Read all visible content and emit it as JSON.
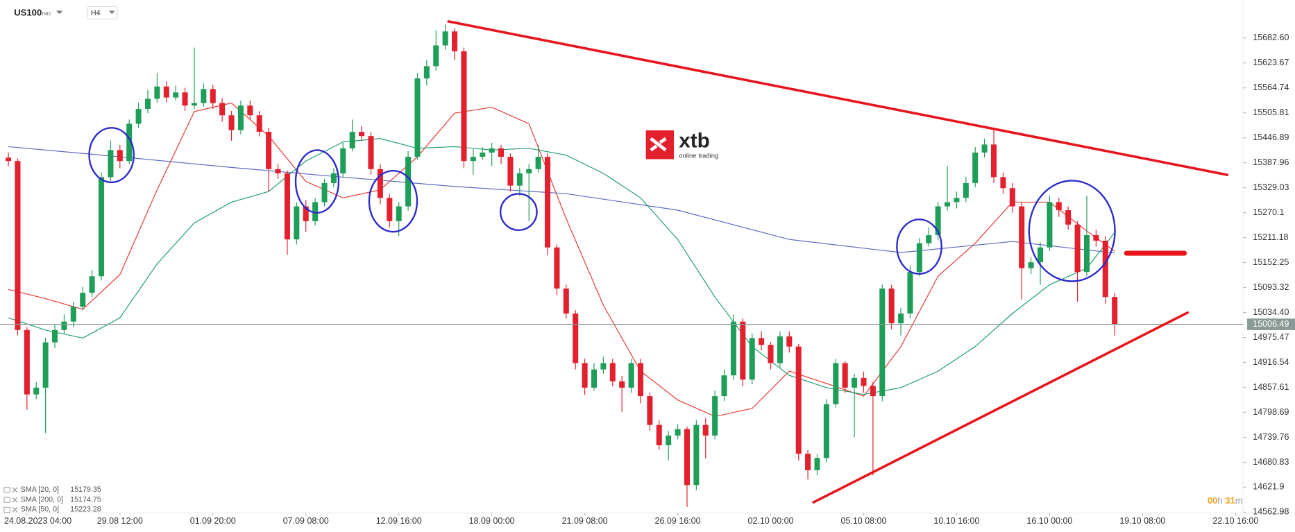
{
  "chart_data": {
    "type": "candlestick",
    "symbol": "US100",
    "market": "IND",
    "interval": "H4",
    "logo": {
      "name": "xtb",
      "tagline": "online trading"
    },
    "up_color": "#1f9e5a",
    "down_color": "#e3202e",
    "x": [
      -2,
      -1,
      0,
      1,
      2,
      3,
      4,
      5,
      6,
      7,
      8,
      9,
      10,
      11,
      12,
      13,
      14,
      15,
      16,
      17,
      18,
      19,
      20,
      21,
      22,
      23,
      24,
      25,
      26,
      27,
      28,
      29,
      30,
      31,
      32,
      33,
      34,
      35,
      36,
      37,
      38,
      39,
      40,
      41,
      42,
      43,
      44,
      45,
      46,
      47,
      48,
      49,
      50,
      51,
      52,
      53,
      54,
      55,
      56,
      57,
      58,
      59,
      60,
      61,
      62,
      63,
      64,
      65,
      66,
      67,
      68,
      69,
      70,
      71,
      72,
      73,
      74,
      75,
      76,
      77,
      78,
      79,
      80,
      81,
      82,
      83,
      84,
      85,
      86,
      87,
      88,
      89,
      90,
      91,
      92,
      93,
      94,
      95,
      96,
      97,
      98,
      99,
      100,
      101,
      102,
      103,
      104,
      105,
      106,
      107,
      108,
      109,
      110,
      111,
      112,
      113,
      114,
      115,
      116,
      117
    ],
    "open": [
      15400,
      15392,
      14993,
      14841,
      14857,
      14964,
      14993,
      15013,
      15048,
      15081,
      15120,
      15354,
      15418,
      15392,
      15480,
      15515,
      15539,
      15568,
      15542,
      15554,
      15523,
      15529,
      15562,
      15529,
      15500,
      15465,
      15523,
      15500,
      15461,
      15373,
      15363,
      15207,
      15285,
      15250,
      15295,
      15340,
      15363,
      15422,
      15461,
      15451,
      15373,
      15305,
      15250,
      15285,
      15402,
      15587,
      15616,
      15665,
      15698,
      15651,
      15392,
      15402,
      15412,
      15422,
      15402,
      15334,
      15363,
      15373,
      15402,
      15188,
      15091,
      15032,
      14915,
      14857,
      14900,
      14915,
      14872,
      14857,
      14915,
      14837,
      14769,
      14721,
      14744,
      14759,
      14627,
      14769,
      14744,
      14837,
      14886,
      15013,
      14876,
      14974,
      14958,
      14915,
      14978,
      14954,
      14701,
      14662,
      14691,
      14818,
      14915,
      14857,
      14880,
      14861,
      14837,
      15091,
      15009,
      15032,
      15130,
      15198,
      15217,
      15285,
      15295,
      15305,
      15340,
      15412,
      15431,
      15354,
      15328,
      15285,
      15139,
      15153,
      15188,
      15295,
      15276,
      15242,
      15130,
      15217,
      15204,
      15071
    ],
    "high": [
      15412,
      15398,
      15000,
      14870,
      14975,
      15005,
      15030,
      15060,
      15095,
      15135,
      15365,
      15440,
      15430,
      15490,
      15530,
      15560,
      15600,
      15580,
      15570,
      15565,
      15660,
      15575,
      15572,
      15540,
      15510,
      15535,
      15535,
      15510,
      15470,
      15385,
      15370,
      15295,
      15300,
      15305,
      15350,
      15375,
      15435,
      15490,
      15475,
      15460,
      15385,
      15315,
      15295,
      15415,
      15600,
      15630,
      15700,
      15715,
      15705,
      15660,
      15420,
      15425,
      15435,
      15430,
      15410,
      15375,
      15385,
      15430,
      15410,
      15195,
      15100,
      15040,
      14925,
      14915,
      14930,
      14925,
      14885,
      14925,
      14925,
      14845,
      14780,
      14755,
      14770,
      14765,
      14780,
      14785,
      14850,
      14900,
      15030,
      15020,
      14985,
      14990,
      14965,
      14990,
      14990,
      14960,
      14710,
      14700,
      14830,
      14925,
      14920,
      14890,
      14895,
      14870,
      15100,
      15100,
      15045,
      15145,
      15210,
      15235,
      15295,
      15380,
      15320,
      15355,
      15425,
      15445,
      15470,
      15365,
      15340,
      15295,
      15165,
      15200,
      15310,
      15305,
      15285,
      15250,
      15310,
      15230,
      15215,
      15080
    ],
    "low": [
      15380,
      14980,
      14805,
      14830,
      14750,
      14950,
      14985,
      15000,
      15040,
      15070,
      15110,
      15345,
      15375,
      15385,
      15470,
      15505,
      15530,
      15530,
      15535,
      15510,
      15515,
      15520,
      15515,
      15485,
      15440,
      15455,
      15490,
      15450,
      15320,
      15350,
      15170,
      15195,
      15225,
      15240,
      15285,
      15330,
      15355,
      15415,
      15440,
      15360,
      15290,
      15235,
      15215,
      15275,
      15395,
      15570,
      15605,
      15655,
      15630,
      15375,
      15360,
      15395,
      15380,
      15385,
      15320,
      15310,
      15250,
      15365,
      15170,
      15075,
      15020,
      14900,
      14840,
      14850,
      14890,
      14860,
      14800,
      14845,
      14820,
      14755,
      14710,
      14685,
      14735,
      14575,
      14615,
      14690,
      14735,
      14825,
      14875,
      14860,
      14865,
      14945,
      14900,
      14905,
      14940,
      14685,
      14640,
      14650,
      14680,
      14810,
      14845,
      14740,
      14845,
      14650,
      14825,
      14995,
      14980,
      15020,
      15120,
      15190,
      15205,
      15275,
      15280,
      15295,
      15330,
      15400,
      15340,
      15315,
      15270,
      15065,
      15125,
      15100,
      15180,
      15260,
      15230,
      15060,
      15120,
      15190,
      15055,
      14980
    ],
    "close": [
      15392,
      14993,
      14841,
      14857,
      14964,
      14993,
      15013,
      15048,
      15081,
      15120,
      15354,
      15418,
      15392,
      15480,
      15515,
      15539,
      15568,
      15542,
      15554,
      15523,
      15529,
      15562,
      15529,
      15500,
      15465,
      15523,
      15500,
      15461,
      15373,
      15363,
      15207,
      15285,
      15250,
      15295,
      15340,
      15363,
      15422,
      15461,
      15451,
      15373,
      15305,
      15250,
      15285,
      15402,
      15587,
      15616,
      15665,
      15698,
      15651,
      15392,
      15402,
      15412,
      15422,
      15402,
      15334,
      15363,
      15373,
      15402,
      15188,
      15091,
      15032,
      14915,
      14857,
      14900,
      14915,
      14872,
      14857,
      14915,
      14837,
      14769,
      14721,
      14744,
      14759,
      14627,
      14769,
      14744,
      14837,
      14886,
      15013,
      14876,
      14974,
      14958,
      14915,
      14978,
      14954,
      14701,
      14662,
      14691,
      14818,
      14915,
      14857,
      14880,
      14861,
      14837,
      15091,
      15009,
      15032,
      15130,
      15198,
      15217,
      15285,
      15295,
      15305,
      15340,
      15412,
      15431,
      15354,
      15328,
      15285,
      15139,
      15153,
      15188,
      15295,
      15276,
      15242,
      15130,
      15217,
      15204,
      15071,
      15007
    ],
    "series": [
      {
        "name": "SMA [20, 0]",
        "color": "#e53935",
        "last": 15179.35,
        "x": [
          -2,
          2,
          6,
          10,
          14,
          18,
          22,
          26,
          30,
          34,
          38,
          42,
          46,
          50,
          54,
          58,
          62,
          66,
          70,
          74,
          78,
          82,
          86,
          90,
          94,
          98,
          102,
          106,
          110,
          114,
          117
        ],
        "values": [
          15089,
          15067,
          15042,
          15124,
          15324,
          15509,
          15529,
          15451,
          15344,
          15305,
          15324,
          15402,
          15505,
          15519,
          15480,
          15256,
          15052,
          14896,
          14828,
          14789,
          14808,
          14896,
          14867,
          14837,
          14954,
          15120,
          15198,
          15295,
          15295,
          15227,
          15179.35
        ]
      },
      {
        "name": "SMA [200, 0]",
        "color": "#5c68c4",
        "last": 15174.75,
        "x": [
          -2,
          10,
          22,
          34,
          46,
          58,
          70,
          82,
          94,
          106,
          117
        ],
        "values": [
          15426,
          15402,
          15377,
          15354,
          15332,
          15315,
          15276,
          15207,
          15176,
          15202,
          15174.75
        ]
      },
      {
        "name": "SMA [50, 0]",
        "color": "#1e9e6b",
        "last": 15223.28,
        "x": [
          -2,
          2,
          6,
          10,
          14,
          18,
          22,
          26,
          30,
          34,
          38,
          42,
          46,
          50,
          54,
          58,
          62,
          66,
          70,
          74,
          78,
          82,
          86,
          90,
          94,
          98,
          102,
          106,
          110,
          114,
          117
        ],
        "values": [
          15022,
          14993,
          14974,
          15022,
          15149,
          15246,
          15295,
          15320,
          15392,
          15437,
          15445,
          15422,
          15426,
          15418,
          15422,
          15406,
          15363,
          15305,
          15207,
          15071,
          14954,
          14886,
          14857,
          14841,
          14857,
          14896,
          14954,
          15032,
          15100,
          15139,
          15223.28
        ]
      }
    ],
    "xlim": [
      -2.9,
      130.8
    ],
    "xticks": [
      {
        "value": 0,
        "label": "24.08.2023 04:00"
      },
      {
        "value": 10,
        "label": "29.08 12:00"
      },
      {
        "value": 20,
        "label": "01.09 20:00"
      },
      {
        "value": 30,
        "label": "07.09 08:00"
      },
      {
        "value": 40,
        "label": "12.09 16:00"
      },
      {
        "value": 50,
        "label": "18.09 00:00"
      },
      {
        "value": 60,
        "label": "21.09 08:00"
      },
      {
        "value": 70,
        "label": "26.09 16:00"
      },
      {
        "value": 80,
        "label": "02.10 00:00"
      },
      {
        "value": 90,
        "label": "05.10 08:00"
      },
      {
        "value": 100,
        "label": "10.10 16:00"
      },
      {
        "value": 110,
        "label": "16.10 00:00"
      },
      {
        "value": 120,
        "label": "19.10 08:00"
      },
      {
        "value": 130,
        "label": "22.10 16:00"
      }
    ],
    "ylim": [
      14561,
      15772.2
    ],
    "yticks": [
      {
        "value": 15682.6,
        "label": "15682.60"
      },
      15623.67,
      15564.74,
      15505.81,
      15446.89,
      15387.96,
      15329.03,
      15270.1,
      15211.18,
      15152.25,
      15093.32,
      {
        "value": 15034.4,
        "label": "15034.40"
      },
      14975.47,
      14916.54,
      14857.61,
      14798.69,
      14739.76,
      14680.83,
      14621.9,
      14562.98
    ],
    "last_price": 15006.49,
    "grid": false,
    "legend": "bottom-left",
    "timer": {
      "hours": "00",
      "hours_unit": "h",
      "minutes": "31",
      "minutes_unit": "m"
    }
  }
}
